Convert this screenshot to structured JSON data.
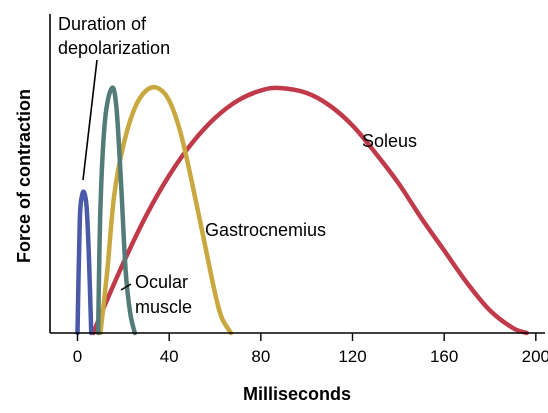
{
  "chart_data": {
    "type": "line",
    "xlabel": "Milliseconds",
    "ylabel": "Force of contraction",
    "xlim": [
      -12,
      204
    ],
    "ylim": [
      0,
      1
    ],
    "xticks": [
      0,
      40,
      80,
      120,
      160,
      200
    ],
    "xtick_labels": [
      "0",
      "40",
      "80",
      "120",
      "160",
      "200"
    ],
    "y_tick_labels_shown": false,
    "grid": false,
    "legend": "none",
    "annotations": [
      {
        "text_lines": [
          "Duration of",
          "depolarization"
        ]
      },
      {
        "text_lines": [
          "Soleus"
        ]
      },
      {
        "text_lines": [
          "Gastrocnemius"
        ]
      },
      {
        "text_lines": [
          "Ocular",
          "muscle"
        ]
      }
    ],
    "series": [
      {
        "label": "Duration of depolarization",
        "color": "#4a5aa8",
        "x": [
          0,
          1,
          2,
          3,
          4,
          5,
          6
        ],
        "y": [
          0.0,
          0.45,
          0.55,
          0.56,
          0.5,
          0.3,
          0.0
        ]
      },
      {
        "label": "Ocular muscle",
        "color": "#537c78",
        "x": [
          9,
          10,
          12,
          15,
          17,
          19,
          21,
          23,
          25
        ],
        "y": [
          0.0,
          0.5,
          0.85,
          0.98,
          0.9,
          0.6,
          0.25,
          0.08,
          0.0
        ]
      },
      {
        "label": "Gastrocnemius",
        "color": "#c9a840",
        "x": [
          10,
          13,
          16,
          20,
          25,
          30,
          35,
          40,
          45,
          50,
          55,
          60,
          63,
          67
        ],
        "y": [
          0.0,
          0.25,
          0.55,
          0.75,
          0.9,
          0.97,
          0.98,
          0.93,
          0.8,
          0.6,
          0.38,
          0.16,
          0.06,
          0.0
        ]
      },
      {
        "label": "Soleus",
        "color": "#c03a4a",
        "x": [
          7,
          10,
          20,
          30,
          40,
          50,
          60,
          70,
          80,
          88,
          100,
          110,
          120,
          130,
          140,
          150,
          160,
          170,
          180,
          190,
          196
        ],
        "y": [
          0.0,
          0.07,
          0.28,
          0.47,
          0.63,
          0.76,
          0.86,
          0.93,
          0.97,
          0.98,
          0.96,
          0.91,
          0.83,
          0.72,
          0.6,
          0.46,
          0.33,
          0.2,
          0.09,
          0.02,
          0.0
        ]
      }
    ]
  }
}
